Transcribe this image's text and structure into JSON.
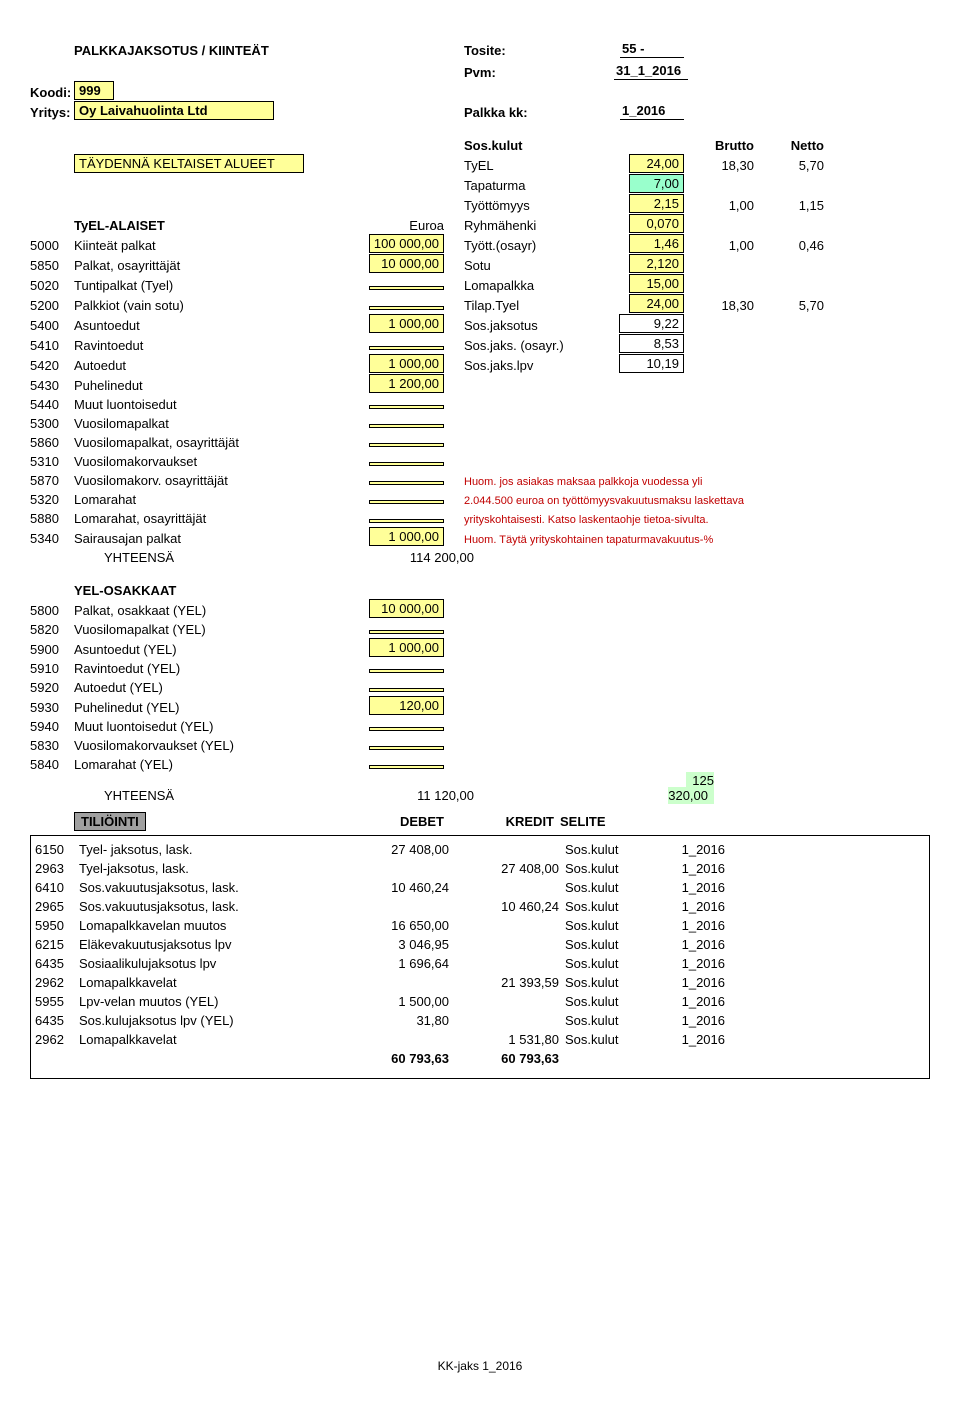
{
  "header": {
    "title": "PALKKAJAKSOTUS / KIINTEÄT",
    "tosite_label": "Tosite:",
    "tosite_value": "55 -",
    "pvm_label": "Pvm:",
    "pvm_value": "31_1_2016",
    "koodi_label": "Koodi:",
    "koodi_value": "999",
    "yritys_label": "Yritys:",
    "yritys_value": "Oy Laivahuolinta Ltd",
    "palkkakk_label": "Palkka kk:",
    "palkkakk_value": "1_2016",
    "fillnote": "TÄYDENNÄ KELTAISET ALUEET",
    "soskulut": "Sos.kulut",
    "brutto": "Brutto",
    "netto": "Netto"
  },
  "rates": {
    "tyel": {
      "label": "TyEL",
      "v1": "24,00",
      "v2": "18,30",
      "v3": "5,70"
    },
    "tapaturma": {
      "label": "Tapaturma",
      "v1": "7,00"
    },
    "tyottom": {
      "label": "Työttömyys",
      "v1": "2,15",
      "v2": "1,00",
      "v3": "1,15"
    },
    "ryhma": {
      "label": "Ryhmähenki",
      "v1": "0,070"
    },
    "tyottosayr": {
      "label": "Tyött.(osayr)",
      "v1": "1,46",
      "v2": "1,00",
      "v3": "0,46"
    },
    "sotu": {
      "label": "Sotu",
      "v1": "2,120"
    },
    "lomapalkka": {
      "label": "Lomapalkka",
      "v1": "15,00"
    },
    "tilaptyel": {
      "label": "Tilap.Tyel",
      "v1": "24,00",
      "v2": "18,30",
      "v3": "5,70"
    },
    "sosjaks": {
      "label": "Sos.jaksotus",
      "v1": "9,22"
    },
    "sosjaksos": {
      "label": "Sos.jaks. (osayr.)",
      "v1": "8,53"
    },
    "sosjakslpv": {
      "label": "Sos.jaks.lpv",
      "v1": "10,19"
    }
  },
  "tyel_section": {
    "heading": "TyEL-ALAISET",
    "euroa": "Euroa",
    "rows": [
      {
        "code": "5000",
        "label": "Kiinteät palkat",
        "amount": "100 000,00"
      },
      {
        "code": "5850",
        "label": "Palkat, osayrittäjät",
        "amount": "10 000,00"
      },
      {
        "code": "5020",
        "label": "Tuntipalkat (Tyel)",
        "amount": ""
      },
      {
        "code": "5200",
        "label": "Palkkiot (vain sotu)",
        "amount": ""
      },
      {
        "code": "5400",
        "label": "Asuntoedut",
        "amount": "1 000,00"
      },
      {
        "code": "5410",
        "label": "Ravintoedut",
        "amount": ""
      },
      {
        "code": "5420",
        "label": "Autoedut",
        "amount": "1 000,00"
      },
      {
        "code": "5430",
        "label": "Puhelinedut",
        "amount": "1 200,00"
      },
      {
        "code": "5440",
        "label": "Muut luontoisedut",
        "amount": ""
      },
      {
        "code": "5300",
        "label": "Vuosilomapalkat",
        "amount": ""
      },
      {
        "code": "5860",
        "label": "Vuosilomapalkat, osayrittäjät",
        "amount": ""
      },
      {
        "code": "5310",
        "label": "Vuosilomakorvaukset",
        "amount": ""
      },
      {
        "code": "5870",
        "label": "Vuosilomakorv. osayrittäjät",
        "amount": ""
      },
      {
        "code": "5320",
        "label": "Lomarahat",
        "amount": ""
      },
      {
        "code": "5880",
        "label": "Lomarahat, osayrittäjät",
        "amount": ""
      },
      {
        "code": "5340",
        "label": "Sairausajan palkat",
        "amount": "1 000,00"
      }
    ],
    "total_label": "YHTEENSÄ",
    "total_value": "114 200,00"
  },
  "notes": {
    "n1": "Huom. jos asiakas maksaa palkkoja vuodessa yli",
    "n2": "2.044.500 euroa on työttömyysvakuutusmaksu laskettava",
    "n3": "yrityskohtaisesti. Katso laskentaohje tietoa-sivulta.",
    "n4": "Huom. Täytä yrityskohtainen tapaturmavakuutus-%"
  },
  "yel_section": {
    "heading": "YEL-OSAKKAAT",
    "rows": [
      {
        "code": "5800",
        "label": "Palkat, osakkaat (YEL)",
        "amount": "10 000,00"
      },
      {
        "code": "5820",
        "label": "Vuosilomapalkat (YEL)",
        "amount": ""
      },
      {
        "code": "5900",
        "label": "Asuntoedut (YEL)",
        "amount": "1 000,00"
      },
      {
        "code": "5910",
        "label": "Ravintoedut (YEL)",
        "amount": ""
      },
      {
        "code": "5920",
        "label": "Autoedut (YEL)",
        "amount": ""
      },
      {
        "code": "5930",
        "label": "Puhelinedut (YEL)",
        "amount": "120,00"
      },
      {
        "code": "5940",
        "label": "Muut luontoisedut (YEL)",
        "amount": ""
      },
      {
        "code": "5830",
        "label": "Vuosilomakorvaukset (YEL)",
        "amount": ""
      },
      {
        "code": "5840",
        "label": "Lomarahat (YEL)",
        "amount": ""
      }
    ],
    "total_label": "YHTEENSÄ",
    "total_value": "11 120,00",
    "grand_total": "125 320,00"
  },
  "tili": {
    "heading": "TILIÖINTI",
    "debet": "DEBET",
    "kredit": "KREDIT",
    "selite": "SELITE",
    "rows": [
      {
        "code": "6150",
        "label": "Tyel- jaksotus, lask.",
        "debet": "27 408,00",
        "kredit": "",
        "selite": "Sos.kulut",
        "period": "1_2016"
      },
      {
        "code": "2963",
        "label": "Tyel-jaksotus, lask.",
        "debet": "",
        "kredit": "27 408,00",
        "selite": "Sos.kulut",
        "period": "1_2016"
      },
      {
        "code": "6410",
        "label": "Sos.vakuutusjaksotus, lask.",
        "debet": "10 460,24",
        "kredit": "",
        "selite": "Sos.kulut",
        "period": "1_2016"
      },
      {
        "code": "2965",
        "label": "Sos.vakuutusjaksotus, lask.",
        "debet": "",
        "kredit": "10 460,24",
        "selite": "Sos.kulut",
        "period": "1_2016"
      },
      {
        "code": "5950",
        "label": "Lomapalkkavelan muutos",
        "debet": "16 650,00",
        "kredit": "",
        "selite": "Sos.kulut",
        "period": "1_2016"
      },
      {
        "code": "6215",
        "label": "Eläkevakuutusjaksotus lpv",
        "debet": "3 046,95",
        "kredit": "",
        "selite": "Sos.kulut",
        "period": "1_2016"
      },
      {
        "code": "6435",
        "label": "Sosiaalikulujaksotus lpv",
        "debet": "1 696,64",
        "kredit": "",
        "selite": "Sos.kulut",
        "period": "1_2016"
      },
      {
        "code": "2962",
        "label": "Lomapalkkavelat",
        "debet": "",
        "kredit": "21 393,59",
        "selite": "Sos.kulut",
        "period": "1_2016"
      },
      {
        "code": "5955",
        "label": "Lpv-velan muutos (YEL)",
        "debet": "1 500,00",
        "kredit": "",
        "selite": "Sos.kulut",
        "period": "1_2016"
      },
      {
        "code": "6435",
        "label": "Sos.kulujaksotus lpv (YEL)",
        "debet": "31,80",
        "kredit": "",
        "selite": "Sos.kulut",
        "period": "1_2016"
      },
      {
        "code": "2962",
        "label": "Lomapalkkavelat",
        "debet": "",
        "kredit": "1 531,80",
        "selite": "Sos.kulut",
        "period": "1_2016"
      }
    ],
    "sum_debet": "60 793,63",
    "sum_kredit": "60 793,63"
  },
  "footer": "KK-jaks 1_2016"
}
